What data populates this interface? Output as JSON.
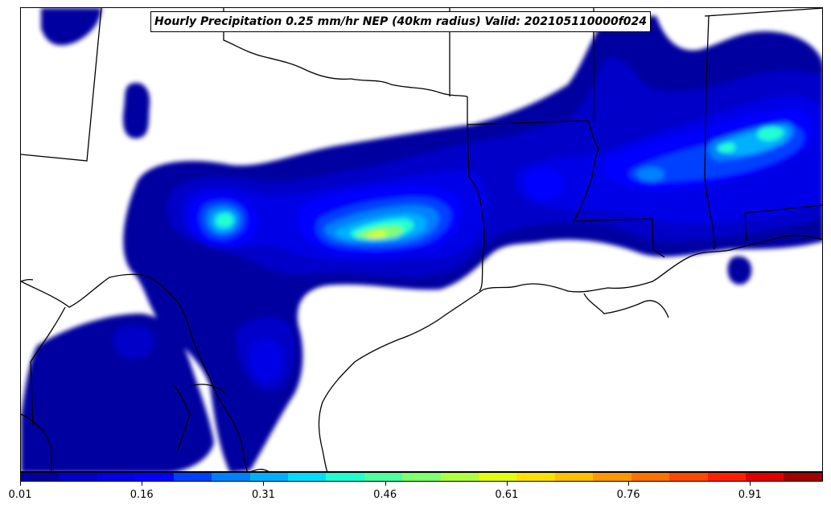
{
  "title": "Hourly Precipitation 0.25 mm/hr NEP (40km radius) Valid: 202105110000f024",
  "colorbar": {
    "ticks": [
      "0.01",
      "0.16",
      "0.31",
      "0.46",
      "0.61",
      "0.76",
      "0.91"
    ],
    "min": 0.01,
    "max": 1.0,
    "colors": [
      "#0000a0",
      "#0000c8",
      "#0000e6",
      "#0000ff",
      "#0040ff",
      "#0080ff",
      "#00b0ff",
      "#00ddff",
      "#20ffd0",
      "#50ffa0",
      "#80ff70",
      "#b0ff40",
      "#e0ff10",
      "#ffe000",
      "#ffc000",
      "#ff9800",
      "#ff7000",
      "#ff4800",
      "#ff2000",
      "#e00000",
      "#a00000"
    ]
  },
  "map": {
    "region": "U.S. Gulf Coast / South Central",
    "colors": {
      "ocean": "#ffffff",
      "land": "#ffffff",
      "borders": "#000000"
    }
  }
}
